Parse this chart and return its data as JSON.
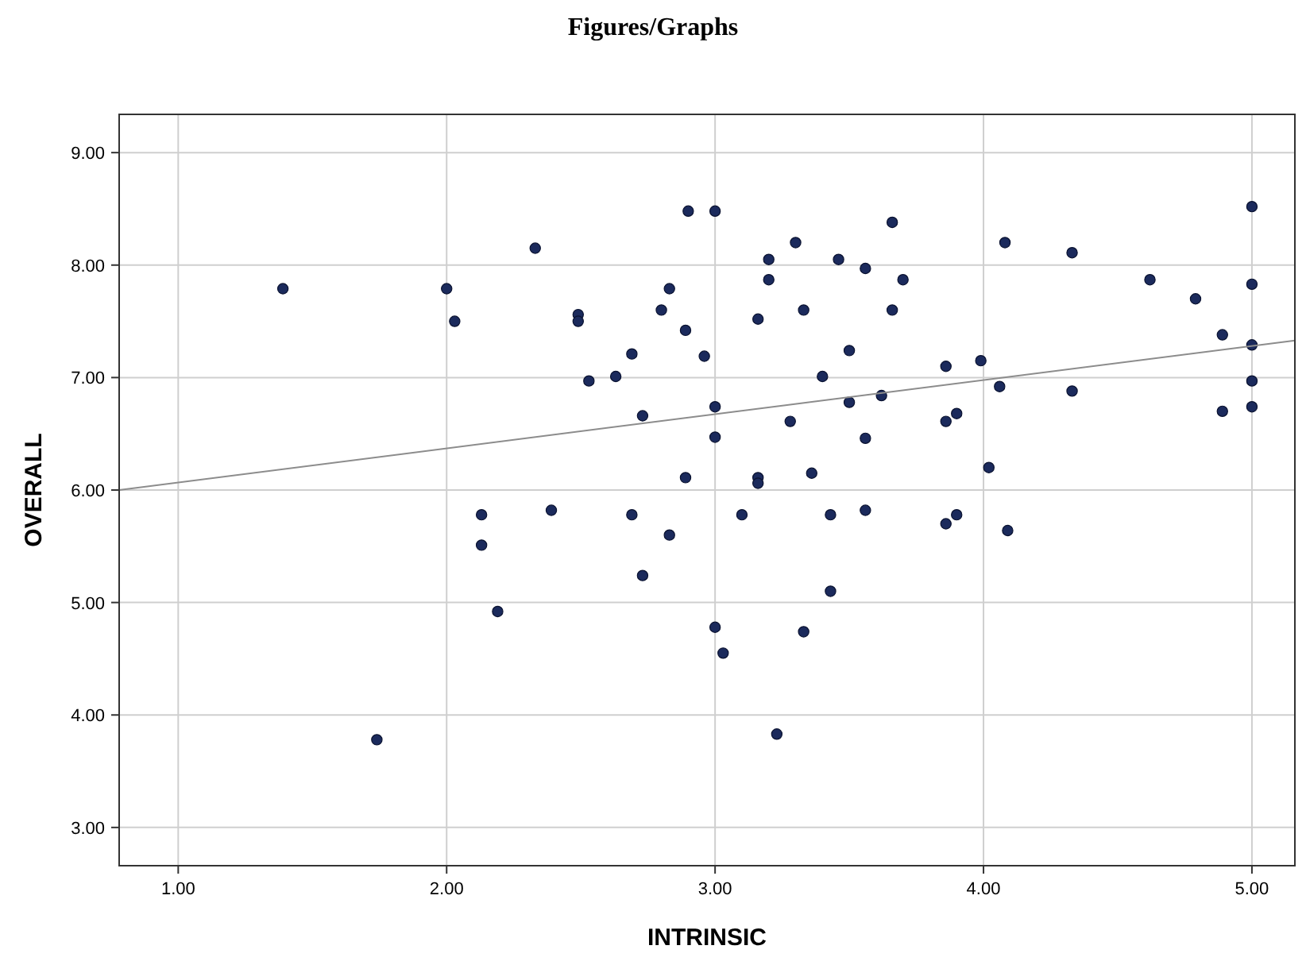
{
  "chart_data": {
    "type": "scatter",
    "title": "Figures/Graphs",
    "xlabel": "INTRINSIC",
    "ylabel": "OVERALL",
    "xlim": [
      0.78,
      5.16
    ],
    "ylim": [
      2.66,
      9.34
    ],
    "xticks": [
      {
        "value": 1,
        "label": "1.00"
      },
      {
        "value": 2,
        "label": "2.00"
      },
      {
        "value": 3,
        "label": "3.00"
      },
      {
        "value": 4,
        "label": "4.00"
      },
      {
        "value": 5,
        "label": "5.00"
      }
    ],
    "yticks": [
      {
        "value": 3,
        "label": "3.00"
      },
      {
        "value": 4,
        "label": "4.00"
      },
      {
        "value": 5,
        "label": "5.00"
      },
      {
        "value": 6,
        "label": "6.00"
      },
      {
        "value": 7,
        "label": "7.00"
      },
      {
        "value": 8,
        "label": "8.00"
      },
      {
        "value": 9,
        "label": "9.00"
      }
    ],
    "grid": true,
    "marker": "circle",
    "series": [
      {
        "color": "#1b2a5c",
        "x": [
          1.39,
          1.74,
          2.0,
          2.03,
          2.13,
          2.13,
          2.19,
          2.33,
          2.39,
          2.49,
          2.49,
          2.53,
          2.63,
          2.69,
          2.69,
          2.73,
          2.73,
          2.8,
          2.83,
          2.83,
          2.89,
          2.89,
          2.9,
          2.96,
          3.0,
          3.0,
          3.0,
          3.0,
          3.03,
          3.1,
          3.16,
          3.16,
          3.16,
          3.2,
          3.2,
          3.23,
          3.28,
          3.3,
          3.33,
          3.33,
          3.36,
          3.4,
          3.43,
          3.43,
          3.46,
          3.5,
          3.5,
          3.56,
          3.56,
          3.56,
          3.62,
          3.66,
          3.66,
          3.7,
          3.86,
          3.86,
          3.86,
          3.9,
          3.9,
          3.99,
          4.02,
          4.06,
          4.08,
          4.09,
          4.33,
          4.33,
          4.62,
          4.79,
          4.89,
          4.89,
          5.0,
          5.0,
          5.0,
          5.0,
          5.0
        ],
        "values": [
          7.79,
          3.78,
          7.79,
          7.5,
          5.78,
          5.51,
          4.92,
          8.15,
          5.82,
          7.56,
          7.5,
          6.97,
          7.01,
          7.21,
          5.78,
          6.66,
          5.24,
          7.6,
          7.79,
          5.6,
          7.42,
          6.11,
          8.48,
          7.19,
          8.48,
          6.74,
          6.47,
          4.78,
          4.55,
          5.78,
          7.52,
          6.11,
          6.06,
          8.05,
          7.87,
          3.83,
          6.61,
          8.2,
          7.6,
          4.74,
          6.15,
          7.01,
          5.78,
          5.1,
          8.05,
          7.24,
          6.78,
          7.97,
          6.46,
          5.82,
          6.84,
          8.38,
          7.6,
          7.87,
          7.1,
          6.61,
          5.7,
          6.68,
          5.78,
          7.15,
          6.2,
          6.92,
          8.2,
          5.64,
          8.11,
          6.88,
          7.87,
          7.7,
          7.38,
          6.7,
          8.52,
          7.83,
          7.29,
          6.97,
          6.74
        ]
      },
      {
        "type": "line",
        "color": "#8c8c8c",
        "marker": "none",
        "x": [
          0.78,
          5.16
        ],
        "values": [
          6.0,
          7.33
        ]
      }
    ]
  }
}
